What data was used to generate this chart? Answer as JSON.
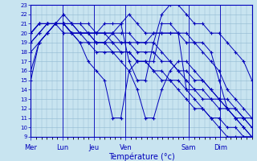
{
  "xlabel": "Température (°c)",
  "bg_color": "#c8e4f0",
  "grid_color": "#90b8d0",
  "line_color": "#0000bb",
  "marker": "+",
  "ylim": [
    9,
    23
  ],
  "yticks": [
    9,
    10,
    11,
    12,
    13,
    14,
    15,
    16,
    17,
    18,
    19,
    20,
    21,
    22,
    23
  ],
  "day_labels": [
    "Mer",
    "Lun",
    "Jeu",
    "Ven",
    "Sam",
    "Dim"
  ],
  "day_positions": [
    0,
    24,
    48,
    72,
    120,
    144
  ],
  "xlim": [
    0,
    168
  ],
  "series": [
    [
      15,
      19,
      20,
      21,
      21,
      20,
      19,
      17,
      16,
      15,
      11,
      11,
      16,
      14,
      11,
      11,
      14,
      16,
      17,
      17,
      16,
      15,
      14,
      13,
      12,
      11,
      10,
      9
    ],
    [
      20,
      21,
      21,
      21,
      20,
      20,
      19,
      19,
      18,
      18,
      18,
      18,
      18,
      17,
      17,
      16,
      16,
      15,
      15,
      14,
      14,
      13,
      13,
      12,
      12,
      11,
      11,
      10
    ],
    [
      19,
      20,
      21,
      21,
      21,
      20,
      20,
      20,
      19,
      19,
      19,
      18,
      18,
      17,
      17,
      16,
      15,
      15,
      14,
      13,
      12,
      12,
      11,
      11,
      10,
      10,
      9,
      9
    ],
    [
      20,
      21,
      21,
      21,
      21,
      21,
      20,
      20,
      20,
      20,
      19,
      19,
      19,
      18,
      18,
      18,
      17,
      17,
      16,
      16,
      15,
      15,
      14,
      13,
      12,
      12,
      11,
      11
    ],
    [
      19,
      20,
      21,
      21,
      21,
      21,
      21,
      21,
      20,
      20,
      20,
      19,
      19,
      19,
      19,
      20,
      20,
      20,
      20,
      20,
      19,
      18,
      17,
      16,
      14,
      13,
      12,
      11
    ],
    [
      18,
      19,
      20,
      21,
      21,
      21,
      20,
      20,
      20,
      21,
      21,
      21,
      17,
      15,
      15,
      19,
      22,
      23,
      23,
      22,
      21,
      21,
      20,
      20,
      19,
      18,
      17,
      15
    ],
    [
      16,
      19,
      20,
      21,
      22,
      21,
      21,
      20,
      20,
      20,
      20,
      20,
      20,
      19,
      19,
      19,
      18,
      17,
      16,
      15,
      14,
      14,
      13,
      13,
      13,
      12,
      11,
      10
    ],
    [
      20,
      21,
      21,
      21,
      21,
      20,
      20,
      19,
      19,
      19,
      20,
      21,
      22,
      21,
      20,
      20,
      20,
      20,
      20,
      19,
      19,
      19,
      18,
      15,
      12,
      11,
      10,
      9
    ],
    [
      20,
      21,
      21,
      21,
      21,
      20,
      20,
      20,
      19,
      19,
      18,
      17,
      16,
      17,
      17,
      17,
      21,
      21,
      20,
      14,
      13,
      12,
      11,
      10,
      9,
      9,
      9,
      9
    ]
  ]
}
